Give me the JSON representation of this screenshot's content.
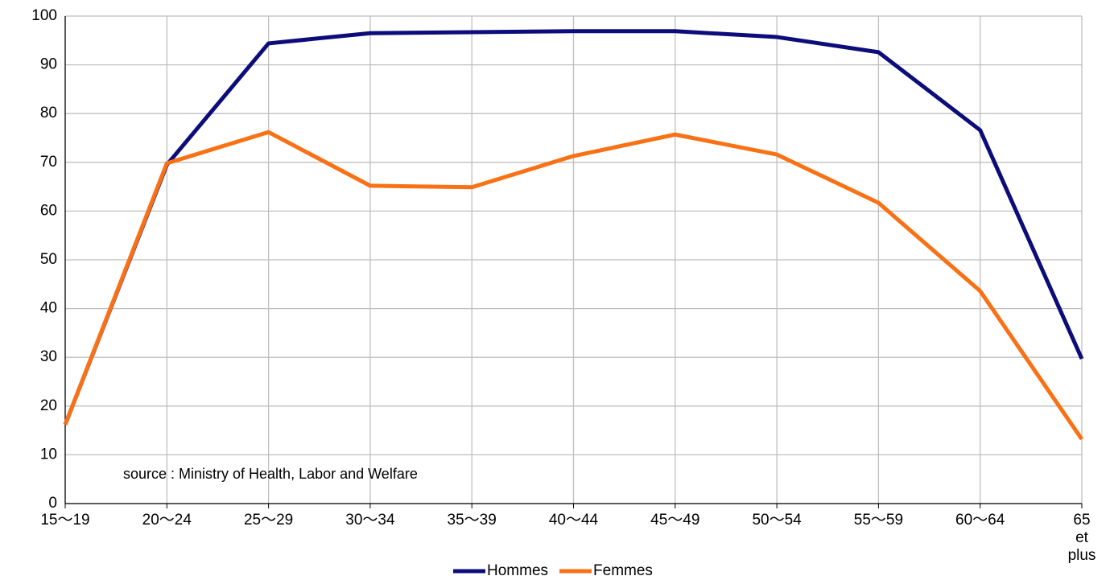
{
  "chart_data": {
    "type": "line",
    "categories": [
      "15〜19",
      "20〜24",
      "25〜29",
      "30〜34",
      "35〜39",
      "40〜44",
      "45〜49",
      "50〜54",
      "55〜59",
      "60〜64",
      "65 et plus"
    ],
    "series": [
      {
        "name": "Hommes",
        "color": "#0c0c7a",
        "values": [
          16.2,
          69.5,
          94.4,
          96.5,
          96.7,
          96.9,
          96.9,
          95.7,
          92.6,
          76.6,
          29.7
        ]
      },
      {
        "name": "Femmes",
        "color": "#f97114",
        "values": [
          16.2,
          69.8,
          76.2,
          65.2,
          64.9,
          71.3,
          75.7,
          71.6,
          61.7,
          43.6,
          13.2
        ]
      }
    ],
    "ylim": [
      0,
      100
    ],
    "yticks": [
      0,
      10,
      20,
      30,
      40,
      50,
      60,
      70,
      80,
      90,
      100
    ],
    "grid": true,
    "legend": "bottom",
    "annotations": [
      "source : Ministry of Health, Labor and Welfare"
    ]
  }
}
